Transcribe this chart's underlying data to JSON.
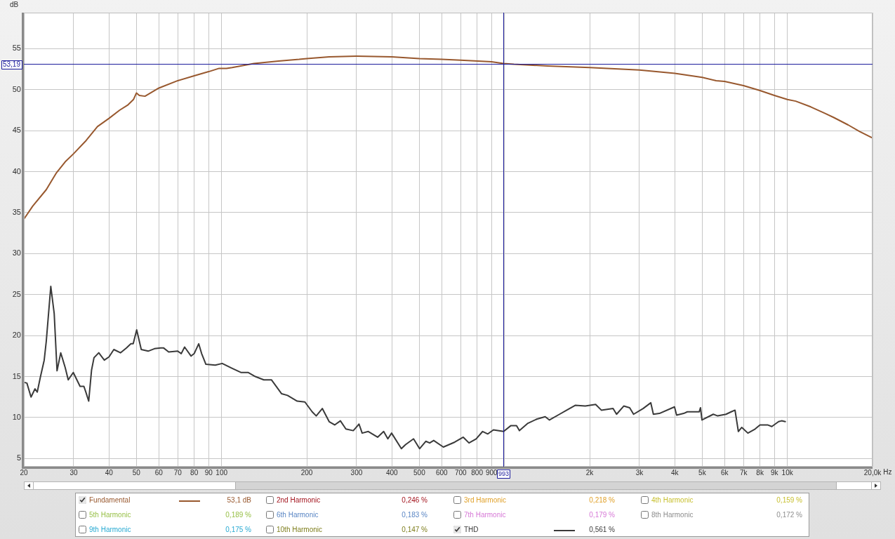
{
  "chart_data": {
    "type": "line",
    "xlabel": "Hz",
    "ylabel": "dB",
    "log": "x",
    "xlim": [
      20,
      20000
    ],
    "ylim": [
      4,
      59.4
    ],
    "xticks": [
      20,
      30,
      40,
      50,
      60,
      70,
      80,
      90,
      100,
      200,
      300,
      400,
      500,
      600,
      700,
      800,
      900,
      {
        "value": 1000,
        "label": null
      },
      {
        "value": 2000,
        "label": "2k"
      },
      {
        "value": 3000,
        "label": "3k"
      },
      {
        "value": 4000,
        "label": "4k"
      },
      {
        "value": 5000,
        "label": "5k"
      },
      {
        "value": 6000,
        "label": "6k"
      },
      {
        "value": 7000,
        "label": "7k"
      },
      {
        "value": 8000,
        "label": "8k"
      },
      {
        "value": 9000,
        "label": "9k"
      },
      {
        "value": 10000,
        "label": "10k"
      },
      {
        "value": 20000,
        "label": "20,0k"
      }
    ],
    "yticks": [
      5,
      10,
      15,
      20,
      25,
      30,
      35,
      40,
      45,
      50,
      55
    ],
    "grid": true,
    "legend": "bottom",
    "line_style": "solid",
    "series": [
      {
        "name": "Fundamental",
        "color": "#98582e",
        "x": [
          20,
          21.5,
          24,
          26,
          28,
          30,
          33.2,
          36.4,
          40,
          43.6,
          46.5,
          48.8,
          50,
          51.2,
          53.6,
          60,
          70,
          80,
          90,
          98,
          104,
          109,
          130,
          159,
          188,
          200,
          240,
          300,
          400,
          500,
          600,
          700,
          900,
          993,
          1080,
          1420,
          2000,
          3000,
          4000,
          5000,
          5600,
          6000,
          7000,
          8000,
          9000,
          10000,
          10700,
          12100,
          13600,
          14600,
          16400,
          18000,
          20000
        ],
        "values": [
          34.2,
          35.8,
          37.8,
          39.8,
          41.2,
          42.2,
          43.8,
          45.5,
          46.5,
          47.5,
          48.1,
          48.8,
          49.6,
          49.3,
          49.2,
          50.2,
          51.1,
          51.7,
          52.2,
          52.6,
          52.6,
          52.7,
          53.2,
          53.5,
          53.7,
          53.8,
          54.0,
          54.1,
          54.0,
          53.8,
          53.7,
          53.6,
          53.4,
          53.2,
          53.1,
          52.9,
          52.7,
          52.4,
          52.0,
          51.5,
          51.1,
          51.0,
          50.5,
          49.9,
          49.3,
          48.8,
          48.6,
          47.9,
          47.1,
          46.6,
          45.7,
          44.9,
          44.1
        ]
      },
      {
        "name": "2nd Harmonic",
        "color": "#a3141e"
      },
      {
        "name": "3rd Harmonic",
        "color": "#e0a028"
      },
      {
        "name": "4th Harmonic",
        "color": "#c8c030"
      },
      {
        "name": "5th Harmonic",
        "color": "#98c048"
      },
      {
        "name": "6th Harmonic",
        "color": "#5a86c4"
      },
      {
        "name": "7th Harmonic",
        "color": "#d678d6"
      },
      {
        "name": "8th Harmonic",
        "color": "#8e8e8e"
      },
      {
        "name": "9th Harmonic",
        "color": "#28aad2"
      },
      {
        "name": "10th Harmonic",
        "color": "#7e7e1c"
      },
      {
        "name": "THD",
        "color": "#3a3a3a",
        "x": [
          20,
          20.5,
          21.2,
          21.9,
          22.3,
          22.9,
          23.6,
          24,
          24.9,
          25.6,
          26.2,
          27,
          28,
          28.7,
          29.9,
          31.6,
          32.6,
          33.2,
          33.9,
          34.7,
          35.4,
          36.8,
          38.5,
          40,
          41.6,
          43.9,
          46.1,
          47.8,
          48.7,
          50.1,
          52,
          55,
          57.9,
          60.9,
          62.3,
          65,
          70,
          72,
          74,
          78,
          80,
          83,
          85,
          88,
          95,
          100.5,
          109,
          117,
          124,
          131.6,
          141,
          150,
          163,
          171,
          185,
          197,
          209,
          216,
          227,
          240,
          251,
          263,
          275,
          292,
          306,
          314,
          330,
          356,
          374,
          387,
          399,
          432,
          447,
          477,
          501,
          527,
          544,
          562,
          608,
          667,
          715,
          749,
          794,
          837,
          873,
          914,
          993,
          1052,
          1103,
          1129,
          1210,
          1299,
          1393,
          1442,
          1565,
          1660,
          1782,
          1930,
          2100,
          2200,
          2420,
          2490,
          2640,
          2770,
          2860,
          3090,
          3290,
          3360,
          3530,
          3990,
          4060,
          4300,
          4430,
          4880,
          4930,
          4990,
          5470,
          5670,
          6070,
          6330,
          6530,
          6710,
          6900,
          7250,
          7690,
          8000,
          8510,
          8810,
          9310,
          9540,
          9830
        ],
        "values": [
          14.3,
          14.2,
          12.5,
          13.5,
          13.1,
          15.0,
          17.0,
          19.3,
          26.0,
          22.7,
          15.7,
          17.9,
          16.1,
          14.6,
          15.5,
          13.8,
          13.8,
          13.0,
          12.0,
          15.8,
          17.3,
          17.9,
          17.0,
          17.4,
          18.3,
          17.9,
          18.5,
          19.0,
          19.0,
          20.7,
          18.3,
          18.1,
          18.4,
          18.5,
          18.5,
          18.0,
          18.1,
          17.8,
          18.6,
          17.5,
          17.8,
          19.0,
          17.8,
          16.5,
          16.4,
          16.6,
          16.0,
          15.5,
          15.5,
          15.0,
          14.6,
          14.6,
          12.9,
          12.7,
          12.0,
          11.9,
          10.7,
          10.2,
          11.1,
          9.5,
          9.1,
          9.6,
          8.6,
          8.4,
          9.2,
          8.1,
          8.3,
          7.6,
          8.3,
          7.4,
          8.1,
          6.2,
          6.7,
          7.4,
          6.2,
          7.1,
          6.9,
          7.2,
          6.4,
          7.0,
          7.6,
          6.9,
          7.4,
          8.3,
          8.0,
          8.5,
          8.3,
          9.0,
          9.0,
          8.4,
          9.3,
          9.8,
          10.1,
          9.7,
          10.4,
          10.9,
          11.5,
          11.4,
          11.6,
          10.9,
          11.1,
          10.4,
          11.4,
          11.2,
          10.4,
          11.1,
          11.8,
          10.4,
          10.5,
          11.3,
          10.3,
          10.5,
          10.7,
          10.7,
          11.2,
          9.7,
          10.4,
          10.2,
          10.4,
          10.7,
          10.9,
          8.3,
          8.8,
          8.1,
          8.6,
          9.1,
          9.1,
          8.9,
          9.5,
          9.6,
          9.5
        ]
      }
    ],
    "ref_lines": [
      {
        "axis": "x",
        "value": 993,
        "label": "993",
        "color": "#1c1c9c"
      },
      {
        "axis": "y",
        "value": 53.19,
        "label": "53,19",
        "color": "#1c1c9c"
      }
    ],
    "annotations": [
      "53,1 dB",
      "0,246 %",
      "0,218 %",
      "0,159 %",
      "0,189 %",
      "0,183 %",
      "0,179 %",
      "0,172 %",
      "0,175 %",
      "0,147 %",
      "0,561 %"
    ]
  }
}
